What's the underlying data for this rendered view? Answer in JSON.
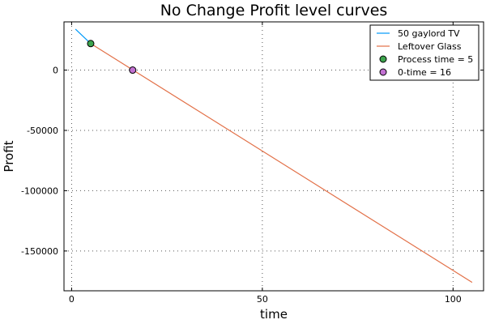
{
  "chart_data": {
    "type": "line",
    "title": "No Change Profit level curves",
    "xlabel": "time",
    "ylabel": "Profit",
    "xlim": [
      -2,
      108
    ],
    "ylim": [
      -183000,
      40000
    ],
    "xticks": [
      0,
      50,
      100
    ],
    "yticks": [
      0,
      -50000,
      -100000,
      -150000
    ],
    "xtick_labels": [
      "0",
      "50",
      "100"
    ],
    "ytick_labels": [
      "0",
      "-50000",
      "-100000",
      "-150000"
    ],
    "grid": true,
    "legend_position": "top-right",
    "series": [
      {
        "name": "50 gaylord TV",
        "kind": "line",
        "color": "#009af9",
        "x": [
          1,
          5
        ],
        "y": [
          34000,
          22000
        ]
      },
      {
        "name": "Leftover Glass",
        "kind": "line",
        "color": "#e26f46",
        "x": [
          5,
          105
        ],
        "y": [
          22000,
          -176000
        ]
      },
      {
        "name": "Process time = 5",
        "kind": "scatter",
        "color": "#3da44d",
        "x": [
          5
        ],
        "y": [
          22000
        ]
      },
      {
        "name": "0-time = 16",
        "kind": "scatter",
        "color": "#c271d2",
        "x": [
          16
        ],
        "y": [
          0
        ]
      }
    ]
  }
}
